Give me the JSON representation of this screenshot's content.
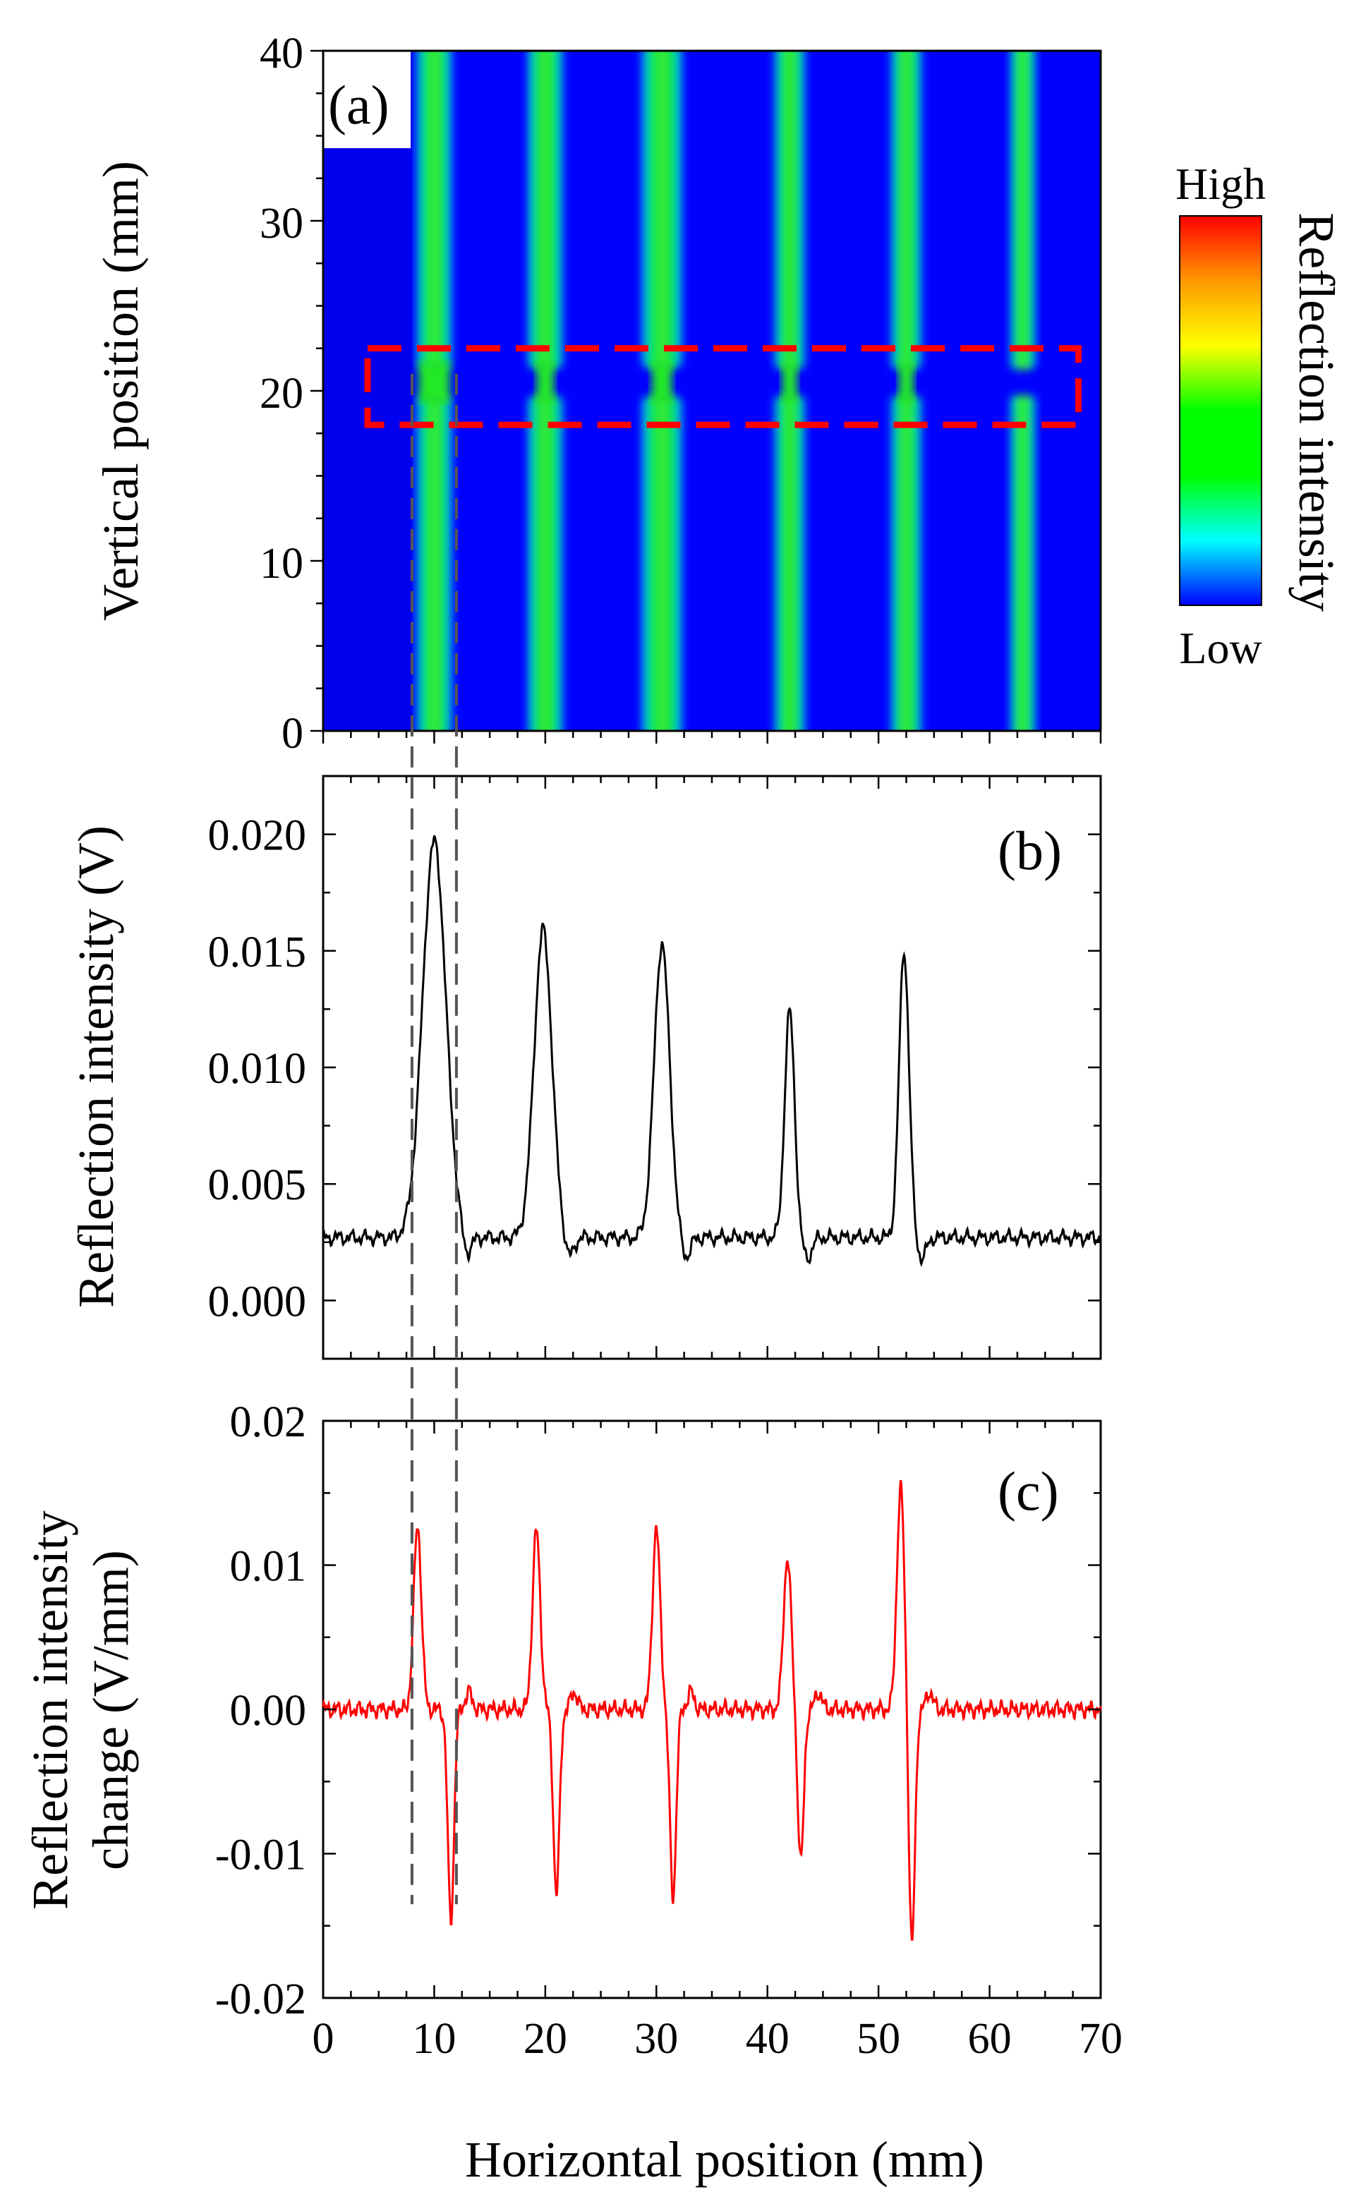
{
  "colors": {
    "background_low": "#0000ff",
    "stripe_mid": "#00e030",
    "stripe_core": "#33ef33",
    "box_dash": "#ff0000",
    "trace_b": "#000000",
    "trace_c": "#ff0000",
    "guide": "#555555"
  },
  "colorbar": {
    "high_label": "High",
    "low_label": "Low",
    "title": "Reflection intensity",
    "stops": [
      "#ff0000",
      "#ff9900",
      "#ffff00",
      "#00ff00",
      "#00ff00",
      "#00ffff",
      "#0000ff"
    ]
  },
  "guide_lines_x_mm": [
    8,
    12
  ],
  "chart_data": [
    {
      "panel": "a",
      "label": "(a)",
      "type": "heatmap",
      "xlabel": "",
      "ylabel": "Vertical position (mm)",
      "xlim": [
        0,
        70
      ],
      "ylim": [
        0,
        40
      ],
      "x_ticks": [
        0,
        10,
        20,
        30,
        40,
        50,
        60,
        70
      ],
      "y_ticks": [
        "0",
        "10",
        "20",
        "30",
        "40"
      ],
      "y_tick_values": [
        0,
        10,
        20,
        30,
        40
      ],
      "value_scale": [
        "Low",
        "High"
      ],
      "stripes_center_mm": [
        10,
        20,
        30.5,
        42,
        52.5,
        63
      ],
      "stripes_width_mm": [
        3.5,
        3.5,
        4,
        3,
        3,
        2.5
      ],
      "stripe_narrowing_y_mm": 20.5,
      "highlight_box": {
        "x": [
          4,
          68
        ],
        "y": [
          18,
          22.5
        ]
      },
      "blank_region": {
        "x": [
          0,
          8
        ],
        "y": [
          0,
          40
        ]
      }
    },
    {
      "panel": "b",
      "label": "(b)",
      "type": "line",
      "xlabel": "",
      "ylabel": "Reflection intensity (V)",
      "xlim": [
        0,
        70
      ],
      "ylim": [
        -0.0025,
        0.0225
      ],
      "y_ticks": [
        "0.000",
        "0.005",
        "0.010",
        "0.015",
        "0.020"
      ],
      "y_tick_values": [
        0,
        0.005,
        0.01,
        0.015,
        0.02
      ],
      "baseline": 0.0027,
      "peaks": [
        {
          "x": 10,
          "y": 0.0197
        },
        {
          "x": 19.8,
          "y": 0.0159
        },
        {
          "x": 30.5,
          "y": 0.0153
        },
        {
          "x": 42.0,
          "y": 0.0124
        },
        {
          "x": 52.3,
          "y": 0.015
        }
      ]
    },
    {
      "panel": "c",
      "label": "(c)",
      "type": "line",
      "xlabel": "Horizontal position (mm)",
      "ylabel": "Reflection intensity change (V/mm)",
      "ylabel_lines": [
        "Reflection intensity",
        "change (V/mm)"
      ],
      "xlim": [
        0,
        70
      ],
      "ylim": [
        -0.02,
        0.02
      ],
      "x_ticks": [
        "0",
        "10",
        "20",
        "30",
        "40",
        "50",
        "60",
        "70"
      ],
      "x_tick_values": [
        0,
        10,
        20,
        30,
        40,
        50,
        60,
        70
      ],
      "y_ticks": [
        "-0.02",
        "-0.01",
        "0.00",
        "0.01",
        "0.02"
      ],
      "y_tick_values": [
        -0.02,
        -0.01,
        0,
        0.01,
        0.02
      ],
      "extrema": [
        {
          "x": 8.5,
          "max": 0.0127,
          "x_min": 11.5,
          "min": -0.0146
        },
        {
          "x": 19.2,
          "max": 0.0124,
          "x_min": 21.0,
          "min": -0.0128
        },
        {
          "x": 30.0,
          "max": 0.0125,
          "x_min": 31.5,
          "min": -0.013
        },
        {
          "x": 41.8,
          "max": 0.0105,
          "x_min": 43.0,
          "min": -0.0105
        },
        {
          "x": 52.0,
          "max": 0.0153,
          "x_min": 53.0,
          "min": -0.0165
        }
      ]
    }
  ]
}
